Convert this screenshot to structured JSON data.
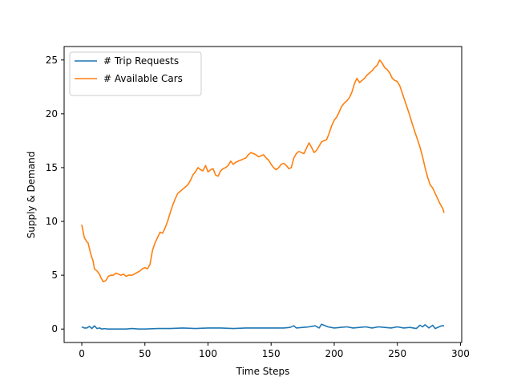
{
  "chart_data": {
    "type": "line",
    "title": "",
    "xlabel": "Time Steps",
    "ylabel": "Supply & Demand",
    "xlim": [
      -14,
      301
    ],
    "ylim": [
      -1.25,
      26.25
    ],
    "xticks": [
      0,
      50,
      100,
      150,
      200,
      250,
      300
    ],
    "yticks": [
      0,
      5,
      10,
      15,
      20,
      25
    ],
    "grid": false,
    "legend_position": "upper-left",
    "series": [
      {
        "name": "# Trip Requests",
        "color": "#1f77b4",
        "x": [
          0,
          2,
          4,
          6,
          8,
          10,
          12,
          14,
          16,
          18,
          20,
          25,
          30,
          35,
          40,
          45,
          50,
          60,
          70,
          80,
          90,
          100,
          110,
          120,
          130,
          140,
          150,
          160,
          165,
          168,
          170,
          175,
          180,
          185,
          188,
          190,
          195,
          200,
          205,
          210,
          215,
          220,
          225,
          230,
          235,
          240,
          245,
          250,
          255,
          260,
          265,
          268,
          270,
          272,
          275,
          278,
          280,
          283,
          285,
          287
        ],
        "y": [
          0.2,
          0.1,
          0.1,
          0.25,
          0.05,
          0.3,
          0.05,
          0.1,
          0.0,
          0.05,
          0.0,
          0.0,
          0.0,
          0.0,
          0.05,
          0.0,
          0.0,
          0.05,
          0.05,
          0.1,
          0.05,
          0.1,
          0.1,
          0.05,
          0.1,
          0.1,
          0.1,
          0.1,
          0.15,
          0.3,
          0.1,
          0.15,
          0.2,
          0.3,
          0.1,
          0.45,
          0.2,
          0.1,
          0.15,
          0.2,
          0.1,
          0.15,
          0.2,
          0.1,
          0.2,
          0.15,
          0.1,
          0.2,
          0.1,
          0.15,
          0.05,
          0.35,
          0.2,
          0.4,
          0.1,
          0.35,
          0.05,
          0.2,
          0.3,
          0.3
        ]
      },
      {
        "name": "# Available Cars",
        "color": "#ff7f0e",
        "x": [
          0,
          2,
          4,
          5,
          7,
          9,
          10,
          12,
          14,
          15,
          17,
          19,
          21,
          23,
          25,
          27,
          29,
          31,
          33,
          35,
          37,
          40,
          43,
          46,
          48,
          50,
          52,
          54,
          56,
          58,
          60,
          62,
          64,
          66,
          68,
          70,
          72,
          74,
          76,
          78,
          80,
          82,
          84,
          86,
          88,
          90,
          92,
          94,
          96,
          98,
          100,
          102,
          104,
          106,
          108,
          110,
          112,
          114,
          116,
          118,
          120,
          122,
          124,
          126,
          128,
          130,
          132,
          134,
          136,
          138,
          140,
          142,
          144,
          146,
          148,
          150,
          152,
          154,
          156,
          158,
          160,
          162,
          164,
          166,
          168,
          170,
          172,
          174,
          176,
          178,
          180,
          182,
          184,
          186,
          188,
          190,
          192,
          194,
          196,
          198,
          200,
          202,
          204,
          206,
          208,
          210,
          212,
          214,
          216,
          218,
          220,
          222,
          224,
          226,
          228,
          230,
          232,
          234,
          236,
          238,
          240,
          242,
          244,
          246,
          248,
          250,
          252,
          254,
          256,
          258,
          260,
          262,
          264,
          266,
          268,
          270,
          272,
          274,
          276,
          278,
          280,
          282,
          284,
          286,
          287
        ],
        "y": [
          9.7,
          8.5,
          8.1,
          8.0,
          7.0,
          6.3,
          5.6,
          5.4,
          5.1,
          4.8,
          4.4,
          4.5,
          4.9,
          5.0,
          5.0,
          5.2,
          5.1,
          5.0,
          5.1,
          4.9,
          5.0,
          5.0,
          5.2,
          5.4,
          5.6,
          5.7,
          5.6,
          6.0,
          7.3,
          8.0,
          8.5,
          9.0,
          8.9,
          9.4,
          10.0,
          10.8,
          11.5,
          12.1,
          12.6,
          12.8,
          13.0,
          13.2,
          13.4,
          13.8,
          14.3,
          14.6,
          15.0,
          14.8,
          14.7,
          15.2,
          14.6,
          14.8,
          14.9,
          14.3,
          14.2,
          14.7,
          14.9,
          15.0,
          15.2,
          15.6,
          15.3,
          15.5,
          15.6,
          15.7,
          15.8,
          15.9,
          16.2,
          16.4,
          16.3,
          16.2,
          16.0,
          16.1,
          16.2,
          15.9,
          15.7,
          15.3,
          15.0,
          14.8,
          15.0,
          15.3,
          15.4,
          15.2,
          14.9,
          15.0,
          15.9,
          16.3,
          16.5,
          16.4,
          16.3,
          16.8,
          17.3,
          16.9,
          16.4,
          16.6,
          17.0,
          17.4,
          17.5,
          17.6,
          18.2,
          18.9,
          19.4,
          19.7,
          20.2,
          20.7,
          21.0,
          21.2,
          21.5,
          22.0,
          22.8,
          23.3,
          22.9,
          23.1,
          23.3,
          23.6,
          23.8,
          24.0,
          24.3,
          24.5,
          25.0,
          24.7,
          24.3,
          24.1,
          23.8,
          23.3,
          23.1,
          23.0,
          22.6,
          21.9,
          21.2,
          20.5,
          19.8,
          19.0,
          18.3,
          17.6,
          16.9,
          16.0,
          15.0,
          14.1,
          13.4,
          13.1,
          12.6,
          12.1,
          11.6,
          11.2,
          10.8
        ]
      }
    ]
  }
}
